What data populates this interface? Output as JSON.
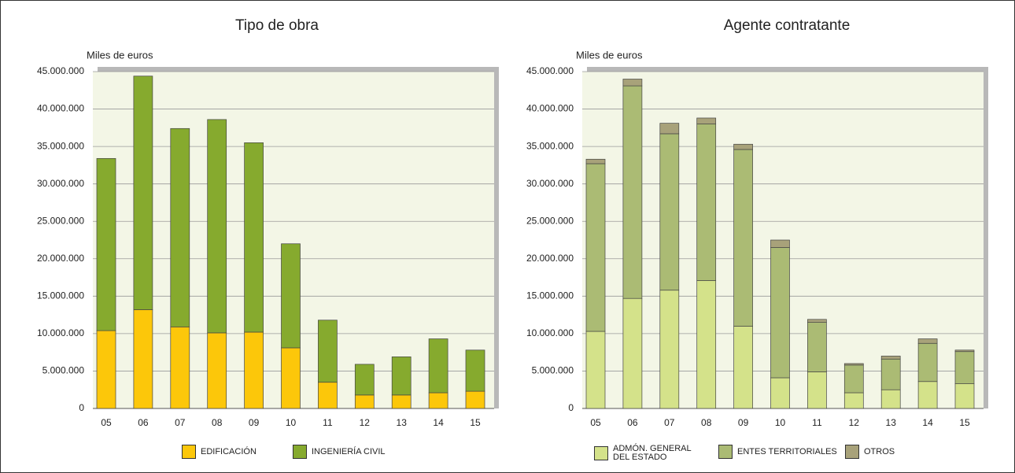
{
  "chart_data": [
    {
      "type": "bar",
      "stacked": true,
      "title": "Tipo de obra",
      "y_label": "Miles de euros",
      "categories": [
        "05",
        "06",
        "07",
        "08",
        "09",
        "10",
        "11",
        "12",
        "13",
        "14",
        "15"
      ],
      "series": [
        {
          "name": "EDIFICACIÓN",
          "color": "#fcc70a",
          "values": [
            10400000,
            13200000,
            10900000,
            10100000,
            10200000,
            8100000,
            3500000,
            1800000,
            1800000,
            2100000,
            2300000
          ]
        },
        {
          "name": "INGENIERÍA  CIVIL",
          "color": "#86aa2e",
          "values": [
            23000000,
            31200000,
            26500000,
            28500000,
            25300000,
            13900000,
            8300000,
            4100000,
            5100000,
            7200000,
            5500000
          ]
        }
      ],
      "ylim": [
        0,
        45000000
      ],
      "yticks": [
        0,
        {
          "value": 5000000,
          "label": "5.000.000"
        },
        {
          "value": 10000000,
          "label": "10.000.000"
        },
        {
          "value": 15000000,
          "label": "15.000.000"
        },
        {
          "value": 20000000,
          "label": "20.000.000"
        },
        {
          "value": 25000000,
          "label": "25.000.000"
        },
        {
          "value": 30000000,
          "label": "30.000.000"
        },
        {
          "value": 35000000,
          "label": "35.000.000"
        },
        {
          "value": 40000000,
          "label": "40.000.000"
        },
        {
          "value": 45000000,
          "label": "45.000.000"
        }
      ],
      "grid": true
    },
    {
      "type": "bar",
      "stacked": true,
      "title": "Agente contratante",
      "y_label": "Miles de euros",
      "categories": [
        "05",
        "06",
        "07",
        "08",
        "09",
        "10",
        "11",
        "12",
        "13",
        "14",
        "15"
      ],
      "series": [
        {
          "name": "ADMÓN. GENERAL\nDEL ESTADO",
          "color": "#d4e28a",
          "values": [
            10300000,
            14700000,
            15800000,
            17100000,
            11000000,
            4100000,
            4900000,
            2100000,
            2500000,
            3600000,
            3300000
          ]
        },
        {
          "name": "ENTES TERRITORIALES",
          "color": "#abbb74",
          "values": [
            22400000,
            28400000,
            20900000,
            20900000,
            23600000,
            17400000,
            6600000,
            3700000,
            4100000,
            5100000,
            4300000
          ]
        },
        {
          "name": "OTROS",
          "color": "#a8a27a",
          "values": [
            600000,
            900000,
            1400000,
            800000,
            700000,
            1000000,
            400000,
            200000,
            400000,
            600000,
            200000
          ]
        }
      ],
      "ylim": [
        0,
        45000000
      ],
      "yticks": [
        0,
        {
          "value": 5000000,
          "label": "5.000.000"
        },
        {
          "value": 10000000,
          "label": "10.000.000"
        },
        {
          "value": 15000000,
          "label": "15.000.000"
        },
        {
          "value": 20000000,
          "label": "20.000.000"
        },
        {
          "value": 25000000,
          "label": "25.000.000"
        },
        {
          "value": 30000000,
          "label": "30.000.000"
        },
        {
          "value": 35000000,
          "label": "35.000.000"
        },
        {
          "value": 40000000,
          "label": "40.000.000"
        },
        {
          "value": 45000000,
          "label": "45.000.000"
        }
      ],
      "grid": true
    }
  ]
}
